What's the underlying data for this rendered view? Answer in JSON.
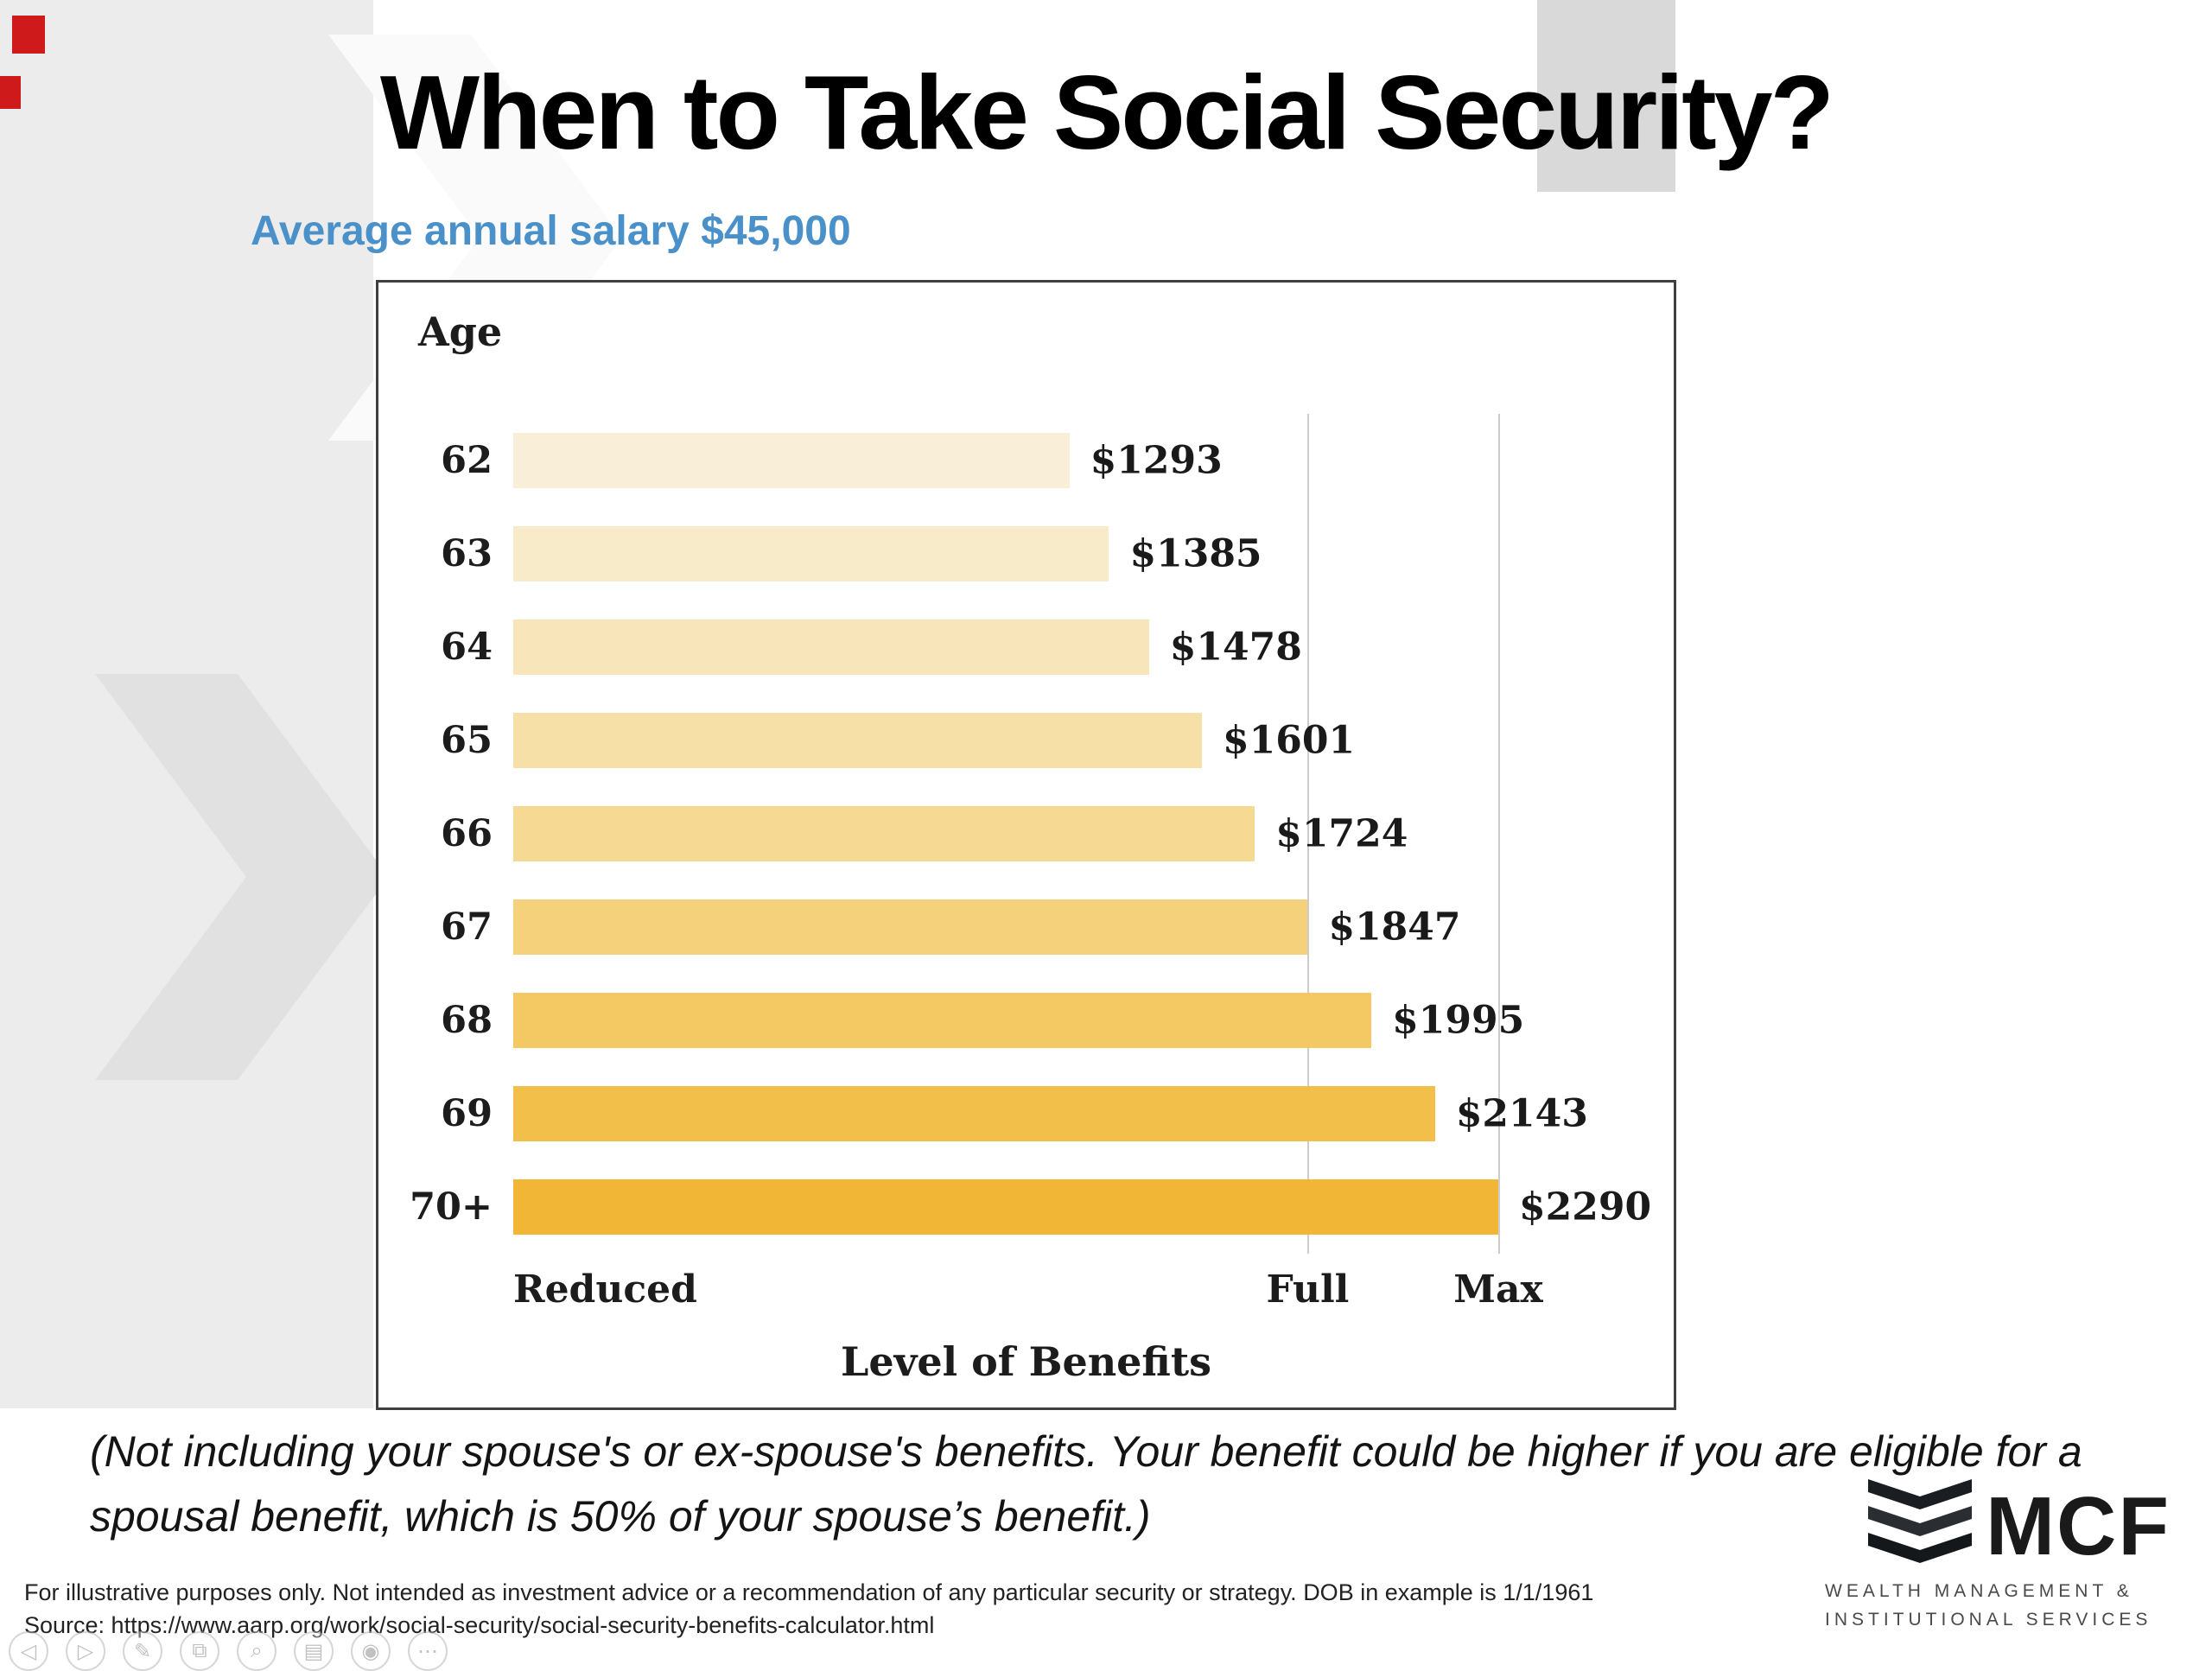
{
  "slide": {
    "title": "When to Take Social Security?",
    "subtitle": "Average annual salary $45,000",
    "note": "(Not including your spouse's or ex-spouse's benefits. Your benefit could be higher if you are eligible for a spousal benefit, which is 50% of your spouse’s benefit.)",
    "disclaimer": "For illustrative purposes only. Not intended as investment advice or a recommendation of any particular security or strategy. DOB in example is 1/1/1961",
    "source": "Source: https://www.aarp.org/work/social-security/social-security-benefits-calculator.html"
  },
  "colors": {
    "subtitle_blue": "#4a90c9",
    "gridline": "#cccccc",
    "chart_border": "#3f3f3f"
  },
  "chart_data": {
    "type": "bar",
    "orientation": "horizontal",
    "y_axis_title": "Age",
    "xlabel": "Level of Benefits",
    "categories": [
      "62",
      "63",
      "64",
      "65",
      "66",
      "67",
      "68",
      "69",
      "70+"
    ],
    "values": [
      1293,
      1385,
      1478,
      1601,
      1724,
      1847,
      1995,
      2143,
      2290
    ],
    "value_labels": [
      "$1293",
      "$1385",
      "$1478",
      "$1601",
      "$1724",
      "$1847",
      "$1995",
      "$2143",
      "$2290"
    ],
    "xlim": [
      0,
      2290
    ],
    "x_ticks": [
      {
        "label": "Reduced",
        "value": 0
      },
      {
        "label": "Full",
        "value": 1847
      },
      {
        "label": "Max",
        "value": 2290
      }
    ],
    "gridline_values": [
      1847,
      2290
    ],
    "bar_colors": [
      "#f9efd9",
      "#f8ebc9",
      "#f8e6ba",
      "#f7e0a8",
      "#f6d992",
      "#f5d17b",
      "#f4c862",
      "#f3bf4b",
      "#f2b636"
    ],
    "grid": "vertical-only",
    "legend": "none"
  },
  "logo": {
    "text": "MCF",
    "tagline_line1": "WEALTH MANAGEMENT &",
    "tagline_line2": "INSTITUTIONAL SERVICES"
  },
  "toolbar": {
    "icons": [
      {
        "name": "back",
        "glyph": "◁"
      },
      {
        "name": "play",
        "glyph": "▷"
      },
      {
        "name": "pen",
        "glyph": "✎"
      },
      {
        "name": "copy",
        "glyph": "⧉"
      },
      {
        "name": "zoom",
        "glyph": "⌕"
      },
      {
        "name": "notes",
        "glyph": "▤"
      },
      {
        "name": "record",
        "glyph": "◉"
      },
      {
        "name": "more",
        "glyph": "⋯"
      }
    ]
  }
}
